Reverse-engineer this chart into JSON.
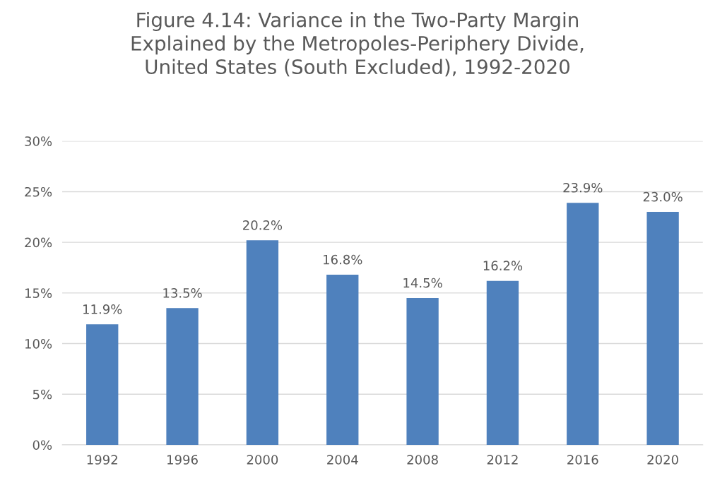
{
  "chart_data": {
    "type": "bar",
    "title": "Figure 4.14: Variance in the Two-Party Margin\nExplained by the Metropoles-Periphery Divide,\nUnited States (South Excluded), 1992-2020",
    "categories": [
      "1992",
      "1996",
      "2000",
      "2004",
      "2008",
      "2012",
      "2016",
      "2020"
    ],
    "values": [
      11.9,
      13.5,
      20.2,
      16.8,
      14.5,
      16.2,
      23.9,
      23.0
    ],
    "value_labels": [
      "11.9%",
      "13.5%",
      "20.2%",
      "16.8%",
      "14.5%",
      "16.2%",
      "23.9%",
      "23.0%"
    ],
    "color": "#4f81bd",
    "ylim": [
      0,
      30
    ],
    "yticks": [
      {
        "value": 0,
        "label": "0%"
      },
      {
        "value": 5,
        "label": "5%"
      },
      {
        "value": 10,
        "label": "10%"
      },
      {
        "value": 15,
        "label": "15%"
      },
      {
        "value": 20,
        "label": "20%"
      },
      {
        "value": 25,
        "label": "25%"
      },
      {
        "value": 30,
        "label": "30%"
      }
    ],
    "grid": "y"
  }
}
